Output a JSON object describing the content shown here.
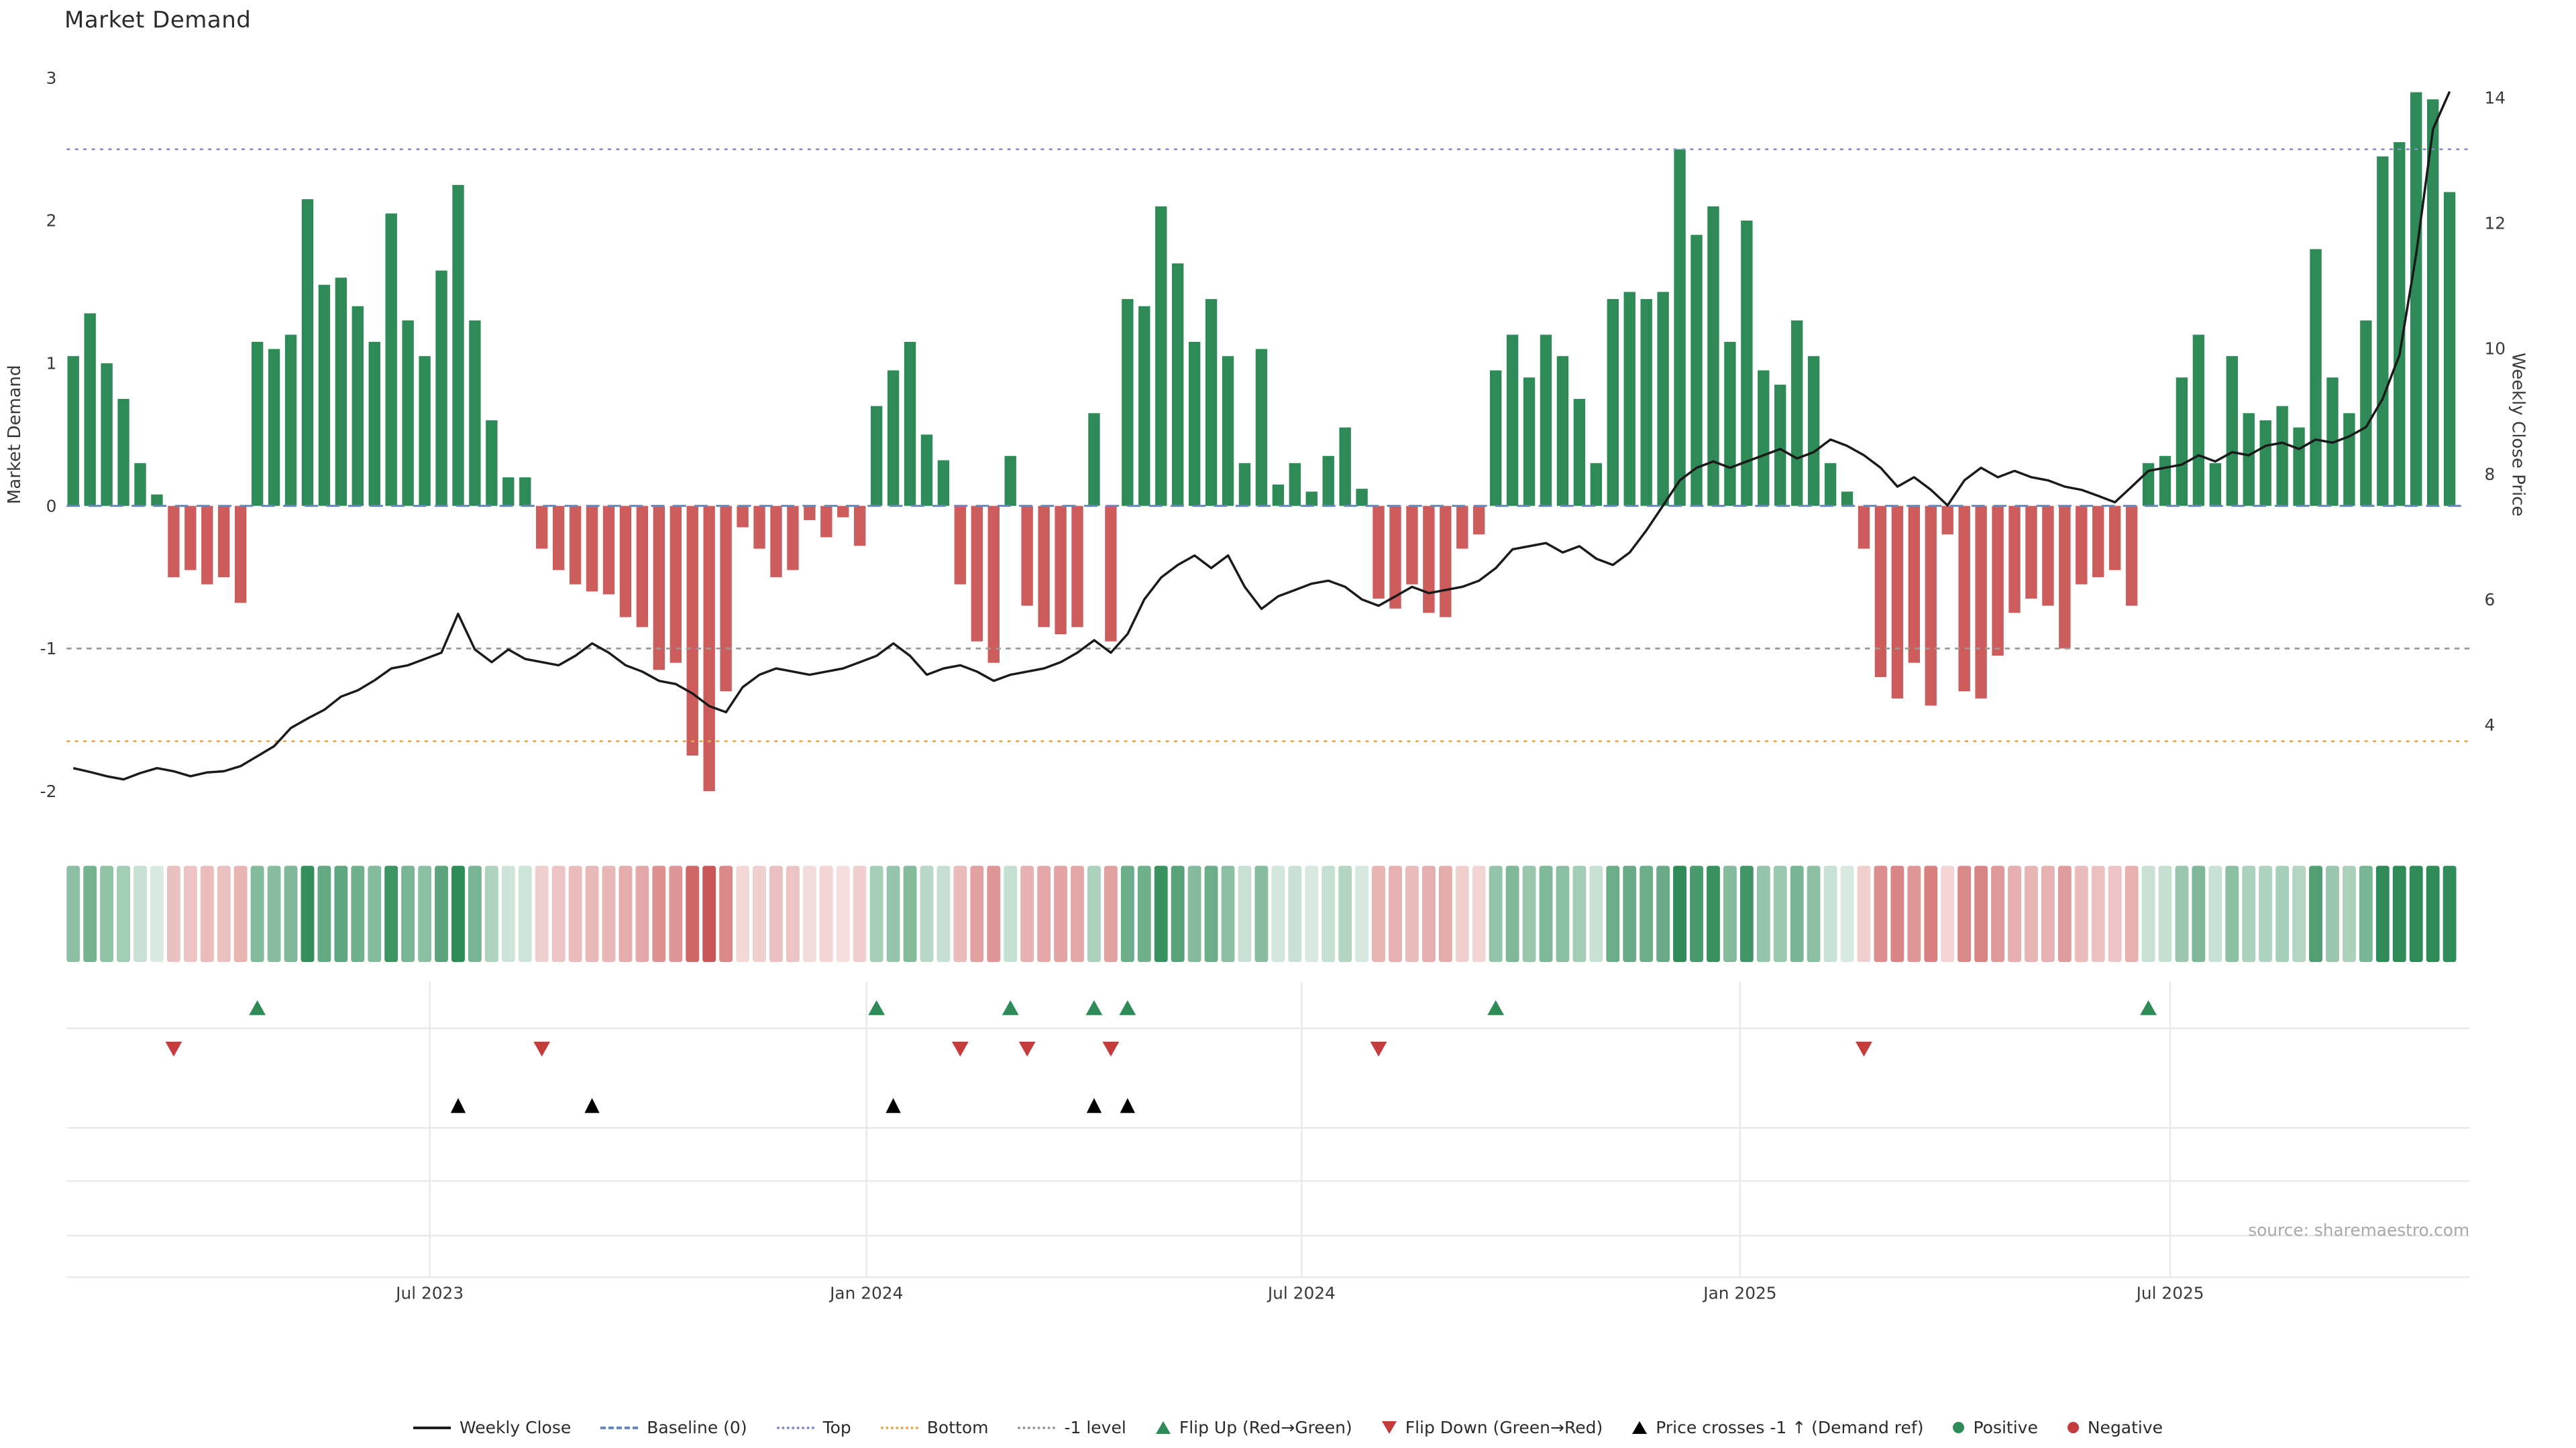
{
  "title": "Market Demand",
  "source": "source: sharemaestro.com",
  "colors": {
    "positive": "#2e8b57",
    "negative": "#cd5c5c",
    "price_line": "#1a1a1a",
    "baseline_line": "#6688bb",
    "top_line": "#8888cc",
    "bottom_line": "#ddaa55",
    "minus1_line": "#999999",
    "flip_up_marker": "#2e8b57",
    "flip_down_marker": "#c43c3c",
    "cross_marker": "#000000",
    "grid": "#e9e9e9",
    "axis_text": "#3a3a3a",
    "source_text": "#a8a8a8"
  },
  "legend": [
    {
      "id": "weekly-close",
      "label": "Weekly Close",
      "type": "solid-line",
      "color": "#1a1a1a",
      "icon": "line-sample-icon"
    },
    {
      "id": "baseline",
      "label": "Baseline (0)",
      "type": "dashed-line",
      "color": "#6688bb",
      "icon": "dashed-line-icon"
    },
    {
      "id": "top",
      "label": "Top",
      "type": "dotted-line",
      "color": "#8888cc",
      "icon": "dotted-line-icon"
    },
    {
      "id": "bottom",
      "label": "Bottom",
      "type": "dotted-line",
      "color": "#ddaa55",
      "icon": "dotted-line-icon"
    },
    {
      "id": "minus-1-level",
      "label": "-1 level",
      "type": "dotted-line",
      "color": "#999999",
      "icon": "dotted-line-icon"
    },
    {
      "id": "flip-up",
      "label": "Flip Up (Red→Green)",
      "type": "triangle-up",
      "color": "#2e8b57",
      "icon": "triangle-up-icon"
    },
    {
      "id": "flip-down",
      "label": "Flip Down (Green→Red)",
      "type": "triangle-down",
      "color": "#c43c3c",
      "icon": "triangle-down-icon"
    },
    {
      "id": "price-crosses",
      "label": "Price crosses -1 ↑ (Demand ref)",
      "type": "triangle-up",
      "color": "#000000",
      "icon": "triangle-up-icon"
    },
    {
      "id": "positive",
      "label": "Positive",
      "type": "circle",
      "color": "#2e8b57",
      "icon": "circle-icon"
    },
    {
      "id": "negative",
      "label": "Negative",
      "type": "circle",
      "color": "#c43c3c",
      "icon": "circle-icon"
    }
  ],
  "chart_data": {
    "type": "bar+line+heatmap",
    "title": "Market Demand",
    "x_unit": "weekly",
    "x_ticks": [
      {
        "label": "Jul 2023",
        "week": 21.3
      },
      {
        "label": "Jan 2024",
        "week": 47.4
      },
      {
        "label": "Jul 2024",
        "week": 73.4
      },
      {
        "label": "Jan 2025",
        "week": 99.6
      },
      {
        "label": "Jul 2025",
        "week": 125.3
      }
    ],
    "left_axis": {
      "label": "Market Demand",
      "ticks": [
        -2,
        -1,
        0,
        1,
        2,
        3
      ],
      "range": [
        -2.3,
        3.05
      ]
    },
    "right_axis": {
      "label": "Weekly Close Price",
      "ticks": [
        4,
        6,
        8,
        10,
        12,
        14
      ],
      "range": [
        2.2,
        14.4
      ]
    },
    "reference_levels": {
      "baseline": 0,
      "top": 2.5,
      "bottom": -1.65,
      "minus1": -1
    },
    "series": [
      {
        "name": "Market Demand",
        "type": "bar",
        "axis": "left",
        "values": [
          1.05,
          1.35,
          1.0,
          0.75,
          0.3,
          0.08,
          -0.5,
          -0.45,
          -0.55,
          -0.5,
          -0.68,
          1.15,
          1.1,
          1.2,
          2.15,
          1.55,
          1.6,
          1.4,
          1.15,
          2.05,
          1.3,
          1.05,
          1.65,
          2.25,
          1.3,
          0.6,
          0.2,
          0.2,
          -0.3,
          -0.45,
          -0.55,
          -0.6,
          -0.62,
          -0.78,
          -0.85,
          -1.15,
          -1.1,
          -1.75,
          -2.0,
          -1.3,
          -0.15,
          -0.3,
          -0.5,
          -0.45,
          -0.1,
          -0.22,
          -0.08,
          -0.28,
          0.7,
          0.95,
          1.15,
          0.5,
          0.32,
          -0.55,
          -0.95,
          -1.1,
          0.35,
          -0.7,
          -0.85,
          -0.9,
          -0.85,
          0.65,
          -0.95,
          1.45,
          1.4,
          2.1,
          1.7,
          1.15,
          1.45,
          1.05,
          0.3,
          1.1,
          0.15,
          0.3,
          0.1,
          0.35,
          0.55,
          0.12,
          -0.65,
          -0.72,
          -0.55,
          -0.75,
          -0.78,
          -0.3,
          -0.2,
          0.95,
          1.2,
          0.9,
          1.2,
          1.05,
          0.75,
          0.3,
          1.45,
          1.5,
          1.45,
          1.5,
          2.5,
          1.9,
          2.1,
          1.15,
          2.0,
          0.95,
          0.85,
          1.3,
          1.05,
          0.3,
          0.1,
          -0.3,
          -1.2,
          -1.35,
          -1.1,
          -1.4,
          -0.2,
          -1.3,
          -1.35,
          -1.05,
          -0.75,
          -0.65,
          -0.7,
          -1.0,
          -0.55,
          -0.5,
          -0.45,
          -0.7,
          0.3,
          0.35,
          0.9,
          1.2,
          0.3,
          1.05,
          0.65,
          0.6,
          0.7,
          0.55,
          1.8,
          0.9,
          0.65,
          1.3,
          2.45,
          2.55,
          2.9,
          2.85,
          2.2
        ]
      },
      {
        "name": "Weekly Close",
        "type": "line",
        "axis": "right",
        "values": [
          3.31,
          3.25,
          3.18,
          3.13,
          3.23,
          3.31,
          3.26,
          3.18,
          3.24,
          3.26,
          3.34,
          3.5,
          3.66,
          3.95,
          4.1,
          4.24,
          4.45,
          4.55,
          4.71,
          4.9,
          4.95,
          5.05,
          5.15,
          5.77,
          5.2,
          5.0,
          5.2,
          5.05,
          5.0,
          4.95,
          5.1,
          5.3,
          5.15,
          4.95,
          4.85,
          4.7,
          4.65,
          4.5,
          4.3,
          4.2,
          4.6,
          4.8,
          4.9,
          4.85,
          4.8,
          4.85,
          4.9,
          5.0,
          5.1,
          5.3,
          5.1,
          4.8,
          4.9,
          4.95,
          4.85,
          4.7,
          4.8,
          4.85,
          4.9,
          5.0,
          5.15,
          5.35,
          5.15,
          5.45,
          6.0,
          6.35,
          6.55,
          6.7,
          6.5,
          6.7,
          6.2,
          5.85,
          6.05,
          6.15,
          6.25,
          6.3,
          6.2,
          6.0,
          5.9,
          6.05,
          6.2,
          6.1,
          6.15,
          6.2,
          6.3,
          6.5,
          6.8,
          6.85,
          6.9,
          6.75,
          6.85,
          6.65,
          6.55,
          6.75,
          7.1,
          7.5,
          7.9,
          8.1,
          8.2,
          8.1,
          8.2,
          8.3,
          8.4,
          8.25,
          8.35,
          8.55,
          8.45,
          8.3,
          8.1,
          7.8,
          7.95,
          7.75,
          7.5,
          7.9,
          8.1,
          7.95,
          8.05,
          7.95,
          7.9,
          7.8,
          7.75,
          7.65,
          7.55,
          7.8,
          8.05,
          8.1,
          8.15,
          8.3,
          8.2,
          8.35,
          8.3,
          8.45,
          8.5,
          8.4,
          8.55,
          8.5,
          8.6,
          8.75,
          9.2,
          9.9,
          11.5,
          13.5,
          14.1
        ]
      }
    ],
    "markers": {
      "flip_up_weeks": [
        11,
        48,
        56,
        61,
        63,
        85,
        124
      ],
      "flip_down_weeks": [
        6,
        28,
        53,
        57,
        62,
        78,
        107
      ],
      "price_cross_weeks": [
        23,
        31,
        49,
        61,
        63
      ]
    }
  }
}
